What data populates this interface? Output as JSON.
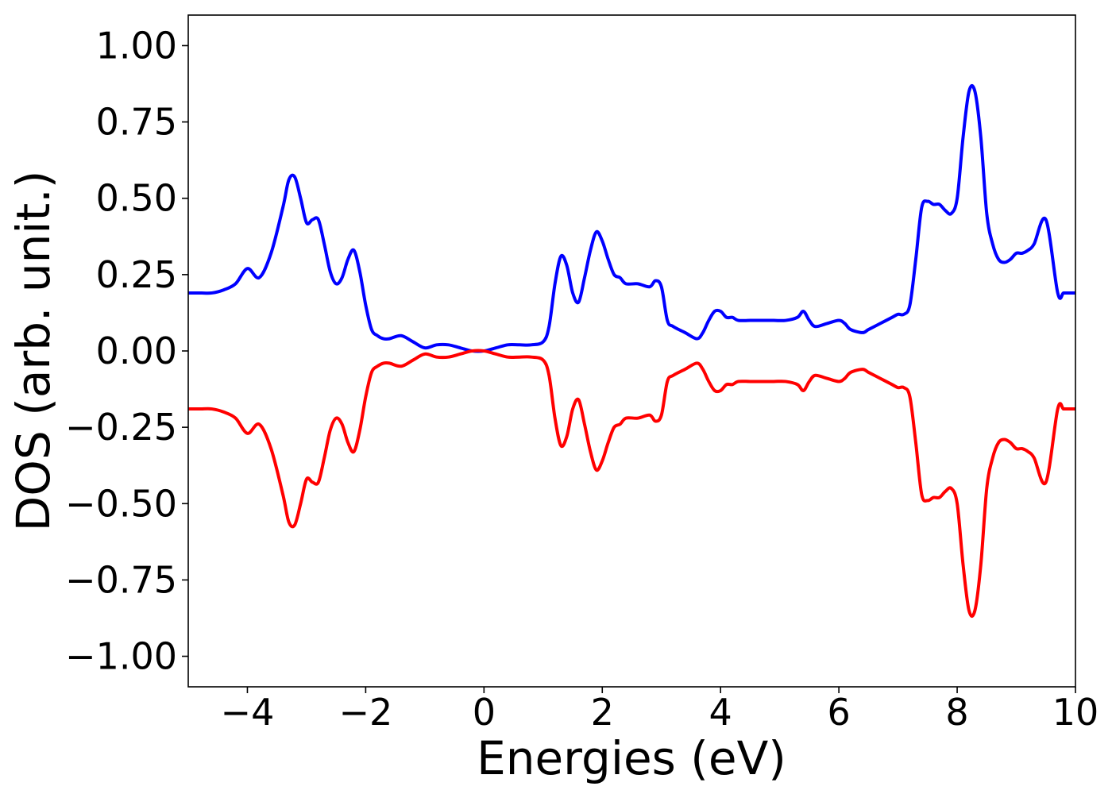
{
  "chart_data": {
    "type": "line",
    "title": "",
    "xlabel": "Energies (eV)",
    "ylabel": "DOS (arb. unit.)",
    "xlim": [
      -5,
      10
    ],
    "ylim": [
      -1.1,
      1.1
    ],
    "grid": false,
    "legend": "none",
    "xticks": [
      -4,
      -2,
      0,
      2,
      4,
      6,
      8,
      10
    ],
    "xtick_labels": [
      "−4",
      "−2",
      "0",
      "2",
      "4",
      "6",
      "8",
      "10"
    ],
    "yticks": [
      1.0,
      0.75,
      0.5,
      0.25,
      0.0,
      -0.25,
      -0.5,
      -0.75,
      -1.0
    ],
    "ytick_labels": [
      "1.00",
      "0.75",
      "0.50",
      "0.25",
      "0.00",
      "−0.25",
      "−0.50",
      "−0.75",
      "−1.00"
    ],
    "series": [
      {
        "color": "#0000ff",
        "x": [
          -5.0,
          -4.8,
          -4.6,
          -4.4,
          -4.2,
          -4.0,
          -3.8,
          -3.6,
          -3.4,
          -3.3,
          -3.2,
          -3.1,
          -3.0,
          -2.9,
          -2.8,
          -2.7,
          -2.6,
          -2.5,
          -2.4,
          -2.3,
          -2.2,
          -2.1,
          -2.0,
          -1.9,
          -1.8,
          -1.7,
          -1.6,
          -1.4,
          -1.2,
          -1.0,
          -0.8,
          -0.6,
          -0.4,
          -0.2,
          0.0,
          0.2,
          0.4,
          0.6,
          0.8,
          1.0,
          1.1,
          1.2,
          1.3,
          1.4,
          1.5,
          1.6,
          1.7,
          1.8,
          1.9,
          2.0,
          2.1,
          2.2,
          2.3,
          2.4,
          2.6,
          2.8,
          2.9,
          3.0,
          3.1,
          3.2,
          3.4,
          3.6,
          3.7,
          3.8,
          3.9,
          4.0,
          4.1,
          4.2,
          4.3,
          4.5,
          4.7,
          4.9,
          5.1,
          5.3,
          5.4,
          5.5,
          5.6,
          5.8,
          6.0,
          6.1,
          6.2,
          6.4,
          6.5,
          6.7,
          6.9,
          7.0,
          7.1,
          7.2,
          7.3,
          7.4,
          7.5,
          7.6,
          7.7,
          7.8,
          7.9,
          8.0,
          8.1,
          8.2,
          8.3,
          8.4,
          8.5,
          8.6,
          8.7,
          8.8,
          8.9,
          9.0,
          9.1,
          9.2,
          9.3,
          9.5,
          9.7,
          9.8,
          9.9,
          10.0
        ],
        "y": [
          0.19,
          0.19,
          0.19,
          0.2,
          0.22,
          0.27,
          0.24,
          0.32,
          0.47,
          0.56,
          0.57,
          0.5,
          0.42,
          0.43,
          0.43,
          0.35,
          0.26,
          0.22,
          0.24,
          0.3,
          0.33,
          0.26,
          0.15,
          0.07,
          0.05,
          0.04,
          0.04,
          0.05,
          0.03,
          0.01,
          0.02,
          0.02,
          0.01,
          0.0,
          0.0,
          0.01,
          0.02,
          0.02,
          0.02,
          0.03,
          0.08,
          0.22,
          0.31,
          0.28,
          0.19,
          0.16,
          0.24,
          0.33,
          0.39,
          0.36,
          0.3,
          0.25,
          0.24,
          0.22,
          0.22,
          0.21,
          0.23,
          0.21,
          0.1,
          0.08,
          0.06,
          0.04,
          0.06,
          0.1,
          0.13,
          0.13,
          0.11,
          0.11,
          0.1,
          0.1,
          0.1,
          0.1,
          0.1,
          0.11,
          0.13,
          0.1,
          0.08,
          0.09,
          0.1,
          0.09,
          0.07,
          0.06,
          0.07,
          0.09,
          0.11,
          0.12,
          0.12,
          0.15,
          0.3,
          0.47,
          0.49,
          0.48,
          0.48,
          0.46,
          0.45,
          0.5,
          0.7,
          0.85,
          0.85,
          0.7,
          0.45,
          0.35,
          0.3,
          0.29,
          0.3,
          0.32,
          0.32,
          0.33,
          0.35,
          0.43,
          0.19,
          0.19,
          0.19,
          0.19
        ]
      },
      {
        "color": "#ff0000",
        "x": [
          -5.0,
          -4.8,
          -4.6,
          -4.4,
          -4.2,
          -4.0,
          -3.8,
          -3.6,
          -3.4,
          -3.3,
          -3.2,
          -3.1,
          -3.0,
          -2.9,
          -2.8,
          -2.7,
          -2.6,
          -2.5,
          -2.4,
          -2.3,
          -2.2,
          -2.1,
          -2.0,
          -1.9,
          -1.8,
          -1.7,
          -1.6,
          -1.4,
          -1.2,
          -1.0,
          -0.8,
          -0.6,
          -0.4,
          -0.2,
          0.0,
          0.2,
          0.4,
          0.6,
          0.8,
          1.0,
          1.1,
          1.2,
          1.3,
          1.4,
          1.5,
          1.6,
          1.7,
          1.8,
          1.9,
          2.0,
          2.1,
          2.2,
          2.3,
          2.4,
          2.6,
          2.8,
          2.9,
          3.0,
          3.1,
          3.2,
          3.4,
          3.6,
          3.7,
          3.8,
          3.9,
          4.0,
          4.1,
          4.2,
          4.3,
          4.5,
          4.7,
          4.9,
          5.1,
          5.3,
          5.4,
          5.5,
          5.6,
          5.8,
          6.0,
          6.1,
          6.2,
          6.4,
          6.5,
          6.7,
          6.9,
          7.0,
          7.1,
          7.2,
          7.3,
          7.4,
          7.5,
          7.6,
          7.7,
          7.8,
          7.9,
          8.0,
          8.1,
          8.2,
          8.3,
          8.4,
          8.5,
          8.6,
          8.7,
          8.8,
          8.9,
          9.0,
          9.1,
          9.2,
          9.3,
          9.5,
          9.7,
          9.8,
          9.9,
          10.0
        ],
        "y": [
          -0.19,
          -0.19,
          -0.19,
          -0.2,
          -0.22,
          -0.27,
          -0.24,
          -0.32,
          -0.47,
          -0.56,
          -0.57,
          -0.5,
          -0.42,
          -0.43,
          -0.43,
          -0.35,
          -0.26,
          -0.22,
          -0.24,
          -0.3,
          -0.33,
          -0.26,
          -0.15,
          -0.07,
          -0.05,
          -0.04,
          -0.04,
          -0.05,
          -0.03,
          -0.01,
          -0.02,
          -0.02,
          -0.01,
          0.0,
          0.0,
          -0.01,
          -0.02,
          -0.02,
          -0.02,
          -0.03,
          -0.08,
          -0.22,
          -0.31,
          -0.28,
          -0.19,
          -0.16,
          -0.24,
          -0.33,
          -0.39,
          -0.36,
          -0.3,
          -0.25,
          -0.24,
          -0.22,
          -0.22,
          -0.21,
          -0.23,
          -0.21,
          -0.1,
          -0.08,
          -0.06,
          -0.04,
          -0.06,
          -0.1,
          -0.13,
          -0.13,
          -0.11,
          -0.11,
          -0.1,
          -0.1,
          -0.1,
          -0.1,
          -0.1,
          -0.11,
          -0.13,
          -0.1,
          -0.08,
          -0.09,
          -0.1,
          -0.09,
          -0.07,
          -0.06,
          -0.07,
          -0.09,
          -0.11,
          -0.12,
          -0.12,
          -0.15,
          -0.3,
          -0.47,
          -0.49,
          -0.48,
          -0.48,
          -0.46,
          -0.45,
          -0.5,
          -0.7,
          -0.85,
          -0.85,
          -0.7,
          -0.45,
          -0.35,
          -0.3,
          -0.29,
          -0.3,
          -0.32,
          -0.32,
          -0.33,
          -0.35,
          -0.43,
          -0.19,
          -0.19,
          -0.19,
          -0.19
        ]
      }
    ]
  }
}
